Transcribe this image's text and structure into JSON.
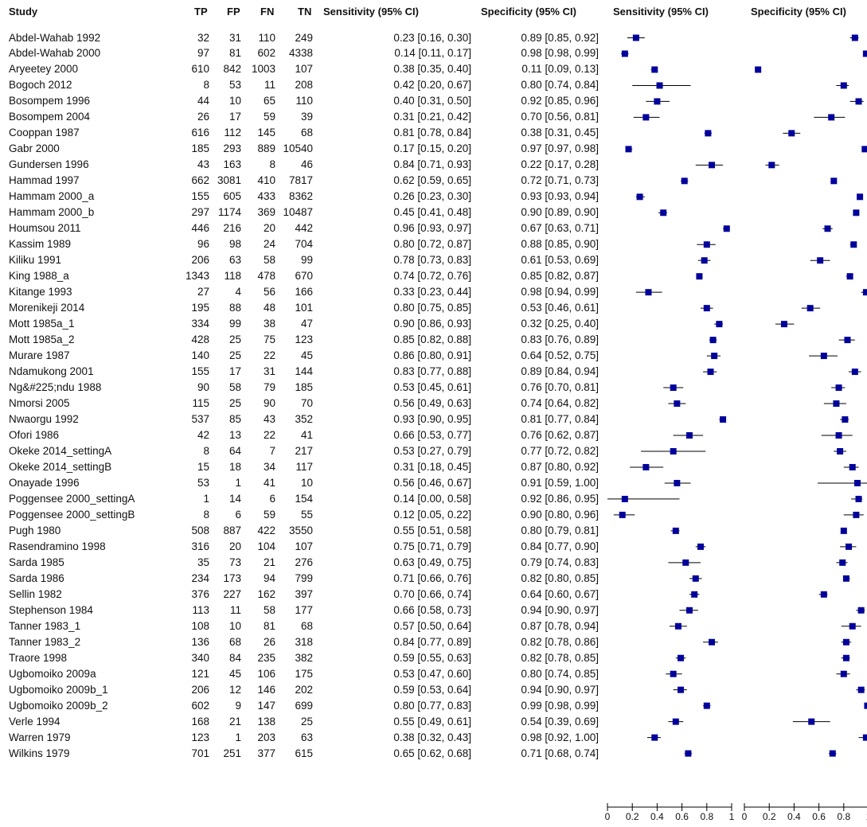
{
  "headers": {
    "study": "Study",
    "tp": "TP",
    "fp": "FP",
    "fn": "FN",
    "tn": "TN",
    "sens": "Sensitivity (95% CI)",
    "spec": "Specificity (95% CI)",
    "sens_plot": "Sensitivity (95% CI)",
    "spec_plot": "Specificity (95% CI)"
  },
  "chart_data": {
    "type": "forest",
    "title": "",
    "panels": [
      {
        "name": "Sensitivity (95% CI)",
        "xlim": [
          0,
          1
        ],
        "ticks": [
          "0",
          "0.2",
          "0.4",
          "0.6",
          "0.8",
          "1"
        ]
      },
      {
        "name": "Specificity (95% CI)",
        "xlim": [
          0,
          1
        ],
        "ticks": [
          "0",
          "0.2",
          "0.4",
          "0.6",
          "0.8",
          "1"
        ]
      }
    ],
    "marker_color": "#00009b",
    "studies": [
      {
        "study": "Abdel-Wahab 1992",
        "tp": "32",
        "fp": "31",
        "fn": "110",
        "tn": "249",
        "sens": "0.23 [0.16, 0.30]",
        "spec": "0.89 [0.85, 0.92]",
        "sv": 0.23,
        "sl": 0.16,
        "sh": 0.3,
        "pv": 0.89,
        "pl": 0.85,
        "ph": 0.92
      },
      {
        "study": "Abdel-Wahab 2000",
        "tp": "97",
        "fp": "81",
        "fn": "602",
        "tn": "4338",
        "sens": "0.14 [0.11, 0.17]",
        "spec": "0.98 [0.98, 0.99]",
        "sv": 0.14,
        "sl": 0.11,
        "sh": 0.17,
        "pv": 0.98,
        "pl": 0.98,
        "ph": 0.99
      },
      {
        "study": "Aryeetey 2000",
        "tp": "610",
        "fp": "842",
        "fn": "1003",
        "tn": "107",
        "sens": "0.38 [0.35, 0.40]",
        "spec": "0.11 [0.09, 0.13]",
        "sv": 0.38,
        "sl": 0.35,
        "sh": 0.4,
        "pv": 0.11,
        "pl": 0.09,
        "ph": 0.13
      },
      {
        "study": "Bogoch 2012",
        "tp": "8",
        "fp": "53",
        "fn": "11",
        "tn": "208",
        "sens": "0.42 [0.20, 0.67]",
        "spec": "0.80 [0.74, 0.84]",
        "sv": 0.42,
        "sl": 0.2,
        "sh": 0.67,
        "pv": 0.8,
        "pl": 0.74,
        "ph": 0.84
      },
      {
        "study": "Bosompem 1996",
        "tp": "44",
        "fp": "10",
        "fn": "65",
        "tn": "110",
        "sens": "0.40 [0.31, 0.50]",
        "spec": "0.92 [0.85, 0.96]",
        "sv": 0.4,
        "sl": 0.31,
        "sh": 0.5,
        "pv": 0.92,
        "pl": 0.85,
        "ph": 0.96
      },
      {
        "study": "Bosompem 2004",
        "tp": "26",
        "fp": "17",
        "fn": "59",
        "tn": "39",
        "sens": "0.31 [0.21, 0.42]",
        "spec": "0.70 [0.56, 0.81]",
        "sv": 0.31,
        "sl": 0.21,
        "sh": 0.42,
        "pv": 0.7,
        "pl": 0.56,
        "ph": 0.81
      },
      {
        "study": "Cooppan 1987",
        "tp": "616",
        "fp": "112",
        "fn": "145",
        "tn": "68",
        "sens": "0.81 [0.78, 0.84]",
        "spec": "0.38 [0.31, 0.45]",
        "sv": 0.81,
        "sl": 0.78,
        "sh": 0.84,
        "pv": 0.38,
        "pl": 0.31,
        "ph": 0.45
      },
      {
        "study": "Gabr 2000",
        "tp": "185",
        "fp": "293",
        "fn": "889",
        "tn": "10540",
        "sens": "0.17 [0.15, 0.20]",
        "spec": "0.97 [0.97, 0.98]",
        "sv": 0.17,
        "sl": 0.15,
        "sh": 0.2,
        "pv": 0.97,
        "pl": 0.97,
        "ph": 0.98
      },
      {
        "study": "Gundersen 1996",
        "tp": "43",
        "fp": "163",
        "fn": "8",
        "tn": "46",
        "sens": "0.84 [0.71, 0.93]",
        "spec": "0.22 [0.17, 0.28]",
        "sv": 0.84,
        "sl": 0.71,
        "sh": 0.93,
        "pv": 0.22,
        "pl": 0.17,
        "ph": 0.28
      },
      {
        "study": "Hammad 1997",
        "tp": "662",
        "fp": "3081",
        "fn": "410",
        "tn": "7817",
        "sens": "0.62 [0.59, 0.65]",
        "spec": "0.72 [0.71, 0.73]",
        "sv": 0.62,
        "sl": 0.59,
        "sh": 0.65,
        "pv": 0.72,
        "pl": 0.71,
        "ph": 0.73
      },
      {
        "study": "Hammam 2000_a",
        "tp": "155",
        "fp": "605",
        "fn": "433",
        "tn": "8362",
        "sens": "0.26 [0.23, 0.30]",
        "spec": "0.93 [0.93, 0.94]",
        "sv": 0.26,
        "sl": 0.23,
        "sh": 0.3,
        "pv": 0.93,
        "pl": 0.93,
        "ph": 0.94
      },
      {
        "study": "Hammam 2000_b",
        "tp": "297",
        "fp": "1174",
        "fn": "369",
        "tn": "10487",
        "sens": "0.45 [0.41, 0.48]",
        "spec": "0.90 [0.89, 0.90]",
        "sv": 0.45,
        "sl": 0.41,
        "sh": 0.48,
        "pv": 0.9,
        "pl": 0.89,
        "ph": 0.9
      },
      {
        "study": "Houmsou 2011",
        "tp": "446",
        "fp": "216",
        "fn": "20",
        "tn": "442",
        "sens": "0.96 [0.93, 0.97]",
        "spec": "0.67 [0.63, 0.71]",
        "sv": 0.96,
        "sl": 0.93,
        "sh": 0.97,
        "pv": 0.67,
        "pl": 0.63,
        "ph": 0.71
      },
      {
        "study": "Kassim 1989",
        "tp": "96",
        "fp": "98",
        "fn": "24",
        "tn": "704",
        "sens": "0.80 [0.72, 0.87]",
        "spec": "0.88 [0.85, 0.90]",
        "sv": 0.8,
        "sl": 0.72,
        "sh": 0.87,
        "pv": 0.88,
        "pl": 0.85,
        "ph": 0.9
      },
      {
        "study": "Kiliku 1991",
        "tp": "206",
        "fp": "63",
        "fn": "58",
        "tn": "99",
        "sens": "0.78 [0.73, 0.83]",
        "spec": "0.61 [0.53, 0.69]",
        "sv": 0.78,
        "sl": 0.73,
        "sh": 0.83,
        "pv": 0.61,
        "pl": 0.53,
        "ph": 0.69
      },
      {
        "study": "King 1988_a",
        "tp": "1343",
        "fp": "118",
        "fn": "478",
        "tn": "670",
        "sens": "0.74 [0.72, 0.76]",
        "spec": "0.85 [0.82, 0.87]",
        "sv": 0.74,
        "sl": 0.72,
        "sh": 0.76,
        "pv": 0.85,
        "pl": 0.82,
        "ph": 0.87
      },
      {
        "study": "Kitange 1993",
        "tp": "27",
        "fp": "4",
        "fn": "56",
        "tn": "166",
        "sens": "0.33 [0.23, 0.44]",
        "spec": "0.98 [0.94, 0.99]",
        "sv": 0.33,
        "sl": 0.23,
        "sh": 0.44,
        "pv": 0.98,
        "pl": 0.94,
        "ph": 0.99
      },
      {
        "study": "Morenikeji 2014",
        "tp": "195",
        "fp": "88",
        "fn": "48",
        "tn": "101",
        "sens": "0.80 [0.75, 0.85]",
        "spec": "0.53 [0.46, 0.61]",
        "sv": 0.8,
        "sl": 0.75,
        "sh": 0.85,
        "pv": 0.53,
        "pl": 0.46,
        "ph": 0.61
      },
      {
        "study": "Mott 1985a_1",
        "tp": "334",
        "fp": "99",
        "fn": "38",
        "tn": "47",
        "sens": "0.90 [0.86, 0.93]",
        "spec": "0.32 [0.25, 0.40]",
        "sv": 0.9,
        "sl": 0.86,
        "sh": 0.93,
        "pv": 0.32,
        "pl": 0.25,
        "ph": 0.4
      },
      {
        "study": "Mott 1985a_2",
        "tp": "428",
        "fp": "25",
        "fn": "75",
        "tn": "123",
        "sens": "0.85 [0.82, 0.88]",
        "spec": "0.83 [0.76, 0.89]",
        "sv": 0.85,
        "sl": 0.82,
        "sh": 0.88,
        "pv": 0.83,
        "pl": 0.76,
        "ph": 0.89
      },
      {
        "study": "Murare 1987",
        "tp": "140",
        "fp": "25",
        "fn": "22",
        "tn": "45",
        "sens": "0.86 [0.80, 0.91]",
        "spec": "0.64 [0.52, 0.75]",
        "sv": 0.86,
        "sl": 0.8,
        "sh": 0.91,
        "pv": 0.64,
        "pl": 0.52,
        "ph": 0.75
      },
      {
        "study": "Ndamukong 2001",
        "tp": "155",
        "fp": "17",
        "fn": "31",
        "tn": "144",
        "sens": "0.83 [0.77, 0.88]",
        "spec": "0.89 [0.84, 0.94]",
        "sv": 0.83,
        "sl": 0.77,
        "sh": 0.88,
        "pv": 0.89,
        "pl": 0.84,
        "ph": 0.94
      },
      {
        "study": "Ng&#225;ndu 1988",
        "tp": "90",
        "fp": "58",
        "fn": "79",
        "tn": "185",
        "sens": "0.53 [0.45, 0.61]",
        "spec": "0.76 [0.70, 0.81]",
        "sv": 0.53,
        "sl": 0.45,
        "sh": 0.61,
        "pv": 0.76,
        "pl": 0.7,
        "ph": 0.81
      },
      {
        "study": "Nmorsi 2005",
        "tp": "115",
        "fp": "25",
        "fn": "90",
        "tn": "70",
        "sens": "0.56 [0.49, 0.63]",
        "spec": "0.74 [0.64, 0.82]",
        "sv": 0.56,
        "sl": 0.49,
        "sh": 0.63,
        "pv": 0.74,
        "pl": 0.64,
        "ph": 0.82
      },
      {
        "study": "Nwaorgu 1992",
        "tp": "537",
        "fp": "85",
        "fn": "43",
        "tn": "352",
        "sens": "0.93 [0.90, 0.95]",
        "spec": "0.81 [0.77, 0.84]",
        "sv": 0.93,
        "sl": 0.9,
        "sh": 0.95,
        "pv": 0.81,
        "pl": 0.77,
        "ph": 0.84
      },
      {
        "study": "Ofori 1986",
        "tp": "42",
        "fp": "13",
        "fn": "22",
        "tn": "41",
        "sens": "0.66 [0.53, 0.77]",
        "spec": "0.76 [0.62, 0.87]",
        "sv": 0.66,
        "sl": 0.53,
        "sh": 0.77,
        "pv": 0.76,
        "pl": 0.62,
        "ph": 0.87
      },
      {
        "study": "Okeke 2014_settingA",
        "tp": "8",
        "fp": "64",
        "fn": "7",
        "tn": "217",
        "sens": "0.53 [0.27, 0.79]",
        "spec": "0.77 [0.72, 0.82]",
        "sv": 0.53,
        "sl": 0.27,
        "sh": 0.79,
        "pv": 0.77,
        "pl": 0.72,
        "ph": 0.82
      },
      {
        "study": "Okeke 2014_settingB",
        "tp": "15",
        "fp": "18",
        "fn": "34",
        "tn": "117",
        "sens": "0.31 [0.18, 0.45]",
        "spec": "0.87 [0.80, 0.92]",
        "sv": 0.31,
        "sl": 0.18,
        "sh": 0.45,
        "pv": 0.87,
        "pl": 0.8,
        "ph": 0.92
      },
      {
        "study": "Onayade 1996",
        "tp": "53",
        "fp": "1",
        "fn": "41",
        "tn": "10",
        "sens": "0.56 [0.46, 0.67]",
        "spec": "0.91 [0.59, 1.00]",
        "sv": 0.56,
        "sl": 0.46,
        "sh": 0.67,
        "pv": 0.91,
        "pl": 0.59,
        "ph": 1.0
      },
      {
        "study": "Poggensee 2000_settingA",
        "tp": "1",
        "fp": "14",
        "fn": "6",
        "tn": "154",
        "sens": "0.14 [0.00, 0.58]",
        "spec": "0.92 [0.86, 0.95]",
        "sv": 0.14,
        "sl": 0.0,
        "sh": 0.58,
        "pv": 0.92,
        "pl": 0.86,
        "ph": 0.95
      },
      {
        "study": "Poggensee 2000_settingB",
        "tp": "8",
        "fp": "6",
        "fn": "59",
        "tn": "55",
        "sens": "0.12 [0.05, 0.22]",
        "spec": "0.90 [0.80, 0.96]",
        "sv": 0.12,
        "sl": 0.05,
        "sh": 0.22,
        "pv": 0.9,
        "pl": 0.8,
        "ph": 0.96
      },
      {
        "study": "Pugh 1980",
        "tp": "508",
        "fp": "887",
        "fn": "422",
        "tn": "3550",
        "sens": "0.55 [0.51, 0.58]",
        "spec": "0.80 [0.79, 0.81]",
        "sv": 0.55,
        "sl": 0.51,
        "sh": 0.58,
        "pv": 0.8,
        "pl": 0.79,
        "ph": 0.81
      },
      {
        "study": "Rasendramino 1998",
        "tp": "316",
        "fp": "20",
        "fn": "104",
        "tn": "107",
        "sens": "0.75 [0.71, 0.79]",
        "spec": "0.84 [0.77, 0.90]",
        "sv": 0.75,
        "sl": 0.71,
        "sh": 0.79,
        "pv": 0.84,
        "pl": 0.77,
        "ph": 0.9
      },
      {
        "study": "Sarda 1985",
        "tp": "35",
        "fp": "73",
        "fn": "21",
        "tn": "276",
        "sens": "0.63 [0.49, 0.75]",
        "spec": "0.79 [0.74, 0.83]",
        "sv": 0.63,
        "sl": 0.49,
        "sh": 0.75,
        "pv": 0.79,
        "pl": 0.74,
        "ph": 0.83
      },
      {
        "study": "Sarda 1986",
        "tp": "234",
        "fp": "173",
        "fn": "94",
        "tn": "799",
        "sens": "0.71 [0.66, 0.76]",
        "spec": "0.82 [0.80, 0.85]",
        "sv": 0.71,
        "sl": 0.66,
        "sh": 0.76,
        "pv": 0.82,
        "pl": 0.8,
        "ph": 0.85
      },
      {
        "study": "Sellin 1982",
        "tp": "376",
        "fp": "227",
        "fn": "162",
        "tn": "397",
        "sens": "0.70 [0.66, 0.74]",
        "spec": "0.64 [0.60, 0.67]",
        "sv": 0.7,
        "sl": 0.66,
        "sh": 0.74,
        "pv": 0.64,
        "pl": 0.6,
        "ph": 0.67
      },
      {
        "study": "Stephenson 1984",
        "tp": "113",
        "fp": "11",
        "fn": "58",
        "tn": "177",
        "sens": "0.66 [0.58, 0.73]",
        "spec": "0.94 [0.90, 0.97]",
        "sv": 0.66,
        "sl": 0.58,
        "sh": 0.73,
        "pv": 0.94,
        "pl": 0.9,
        "ph": 0.97
      },
      {
        "study": "Tanner 1983_1",
        "tp": "108",
        "fp": "10",
        "fn": "81",
        "tn": "68",
        "sens": "0.57 [0.50, 0.64]",
        "spec": "0.87 [0.78, 0.94]",
        "sv": 0.57,
        "sl": 0.5,
        "sh": 0.64,
        "pv": 0.87,
        "pl": 0.78,
        "ph": 0.94
      },
      {
        "study": "Tanner 1983_2",
        "tp": "136",
        "fp": "68",
        "fn": "26",
        "tn": "318",
        "sens": "0.84 [0.77, 0.89]",
        "spec": "0.82 [0.78, 0.86]",
        "sv": 0.84,
        "sl": 0.77,
        "sh": 0.89,
        "pv": 0.82,
        "pl": 0.78,
        "ph": 0.86
      },
      {
        "study": "Traore 1998",
        "tp": "340",
        "fp": "84",
        "fn": "235",
        "tn": "382",
        "sens": "0.59 [0.55, 0.63]",
        "spec": "0.82 [0.78, 0.85]",
        "sv": 0.59,
        "sl": 0.55,
        "sh": 0.63,
        "pv": 0.82,
        "pl": 0.78,
        "ph": 0.85
      },
      {
        "study": "Ugbomoiko 2009a",
        "tp": "121",
        "fp": "45",
        "fn": "106",
        "tn": "175",
        "sens": "0.53 [0.47, 0.60]",
        "spec": "0.80 [0.74, 0.85]",
        "sv": 0.53,
        "sl": 0.47,
        "sh": 0.6,
        "pv": 0.8,
        "pl": 0.74,
        "ph": 0.85
      },
      {
        "study": "Ugbomoiko 2009b_1",
        "tp": "206",
        "fp": "12",
        "fn": "146",
        "tn": "202",
        "sens": "0.59 [0.53, 0.64]",
        "spec": "0.94 [0.90, 0.97]",
        "sv": 0.59,
        "sl": 0.53,
        "sh": 0.64,
        "pv": 0.94,
        "pl": 0.9,
        "ph": 0.97
      },
      {
        "study": "Ugbomoiko 2009b_2",
        "tp": "602",
        "fp": "9",
        "fn": "147",
        "tn": "699",
        "sens": "0.80 [0.77, 0.83]",
        "spec": "0.99 [0.98, 0.99]",
        "sv": 0.8,
        "sl": 0.77,
        "sh": 0.83,
        "pv": 0.99,
        "pl": 0.98,
        "ph": 0.99
      },
      {
        "study": "Verle 1994",
        "tp": "168",
        "fp": "21",
        "fn": "138",
        "tn": "25",
        "sens": "0.55 [0.49, 0.61]",
        "spec": "0.54 [0.39, 0.69]",
        "sv": 0.55,
        "sl": 0.49,
        "sh": 0.61,
        "pv": 0.54,
        "pl": 0.39,
        "ph": 0.69
      },
      {
        "study": "Warren 1979",
        "tp": "123",
        "fp": "1",
        "fn": "203",
        "tn": "63",
        "sens": "0.38 [0.32, 0.43]",
        "spec": "0.98 [0.92, 1.00]",
        "sv": 0.38,
        "sl": 0.32,
        "sh": 0.43,
        "pv": 0.98,
        "pl": 0.92,
        "ph": 1.0
      },
      {
        "study": "Wilkins 1979",
        "tp": "701",
        "fp": "251",
        "fn": "377",
        "tn": "615",
        "sens": "0.65 [0.62, 0.68]",
        "spec": "0.71 [0.68, 0.74]",
        "sv": 0.65,
        "sl": 0.62,
        "sh": 0.68,
        "pv": 0.71,
        "pl": 0.68,
        "ph": 0.74
      }
    ]
  }
}
